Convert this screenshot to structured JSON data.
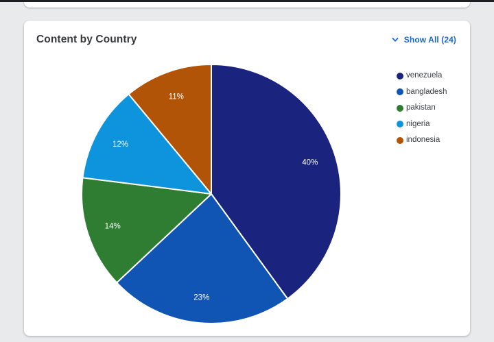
{
  "card": {
    "title": "Content by Country",
    "show_all": {
      "label": "Show All (24)",
      "count": 24
    }
  },
  "chart_data": {
    "type": "pie",
    "title": "Content by Country",
    "legend_position": "right",
    "direction": "clockwise",
    "start_angle_deg": 0,
    "slices": [
      {
        "label": "venezuela",
        "value": 40,
        "display": "40%",
        "color": "#1a237e"
      },
      {
        "label": "bangladesh",
        "value": 23,
        "display": "23%",
        "color": "#1155b4"
      },
      {
        "label": "pakistan",
        "value": 14,
        "display": "14%",
        "color": "#2e7d32"
      },
      {
        "label": "nigeria",
        "value": 12,
        "display": "12%",
        "color": "#0d94dd"
      },
      {
        "label": "indonesia",
        "value": 11,
        "display": "11%",
        "color": "#b25408"
      }
    ]
  },
  "colors": {
    "link": "#1a67d2",
    "title_text": "#37393c",
    "card_bg": "#ffffff",
    "page_bg": "#e9eaec",
    "slice_label_text": "#ffffff"
  }
}
